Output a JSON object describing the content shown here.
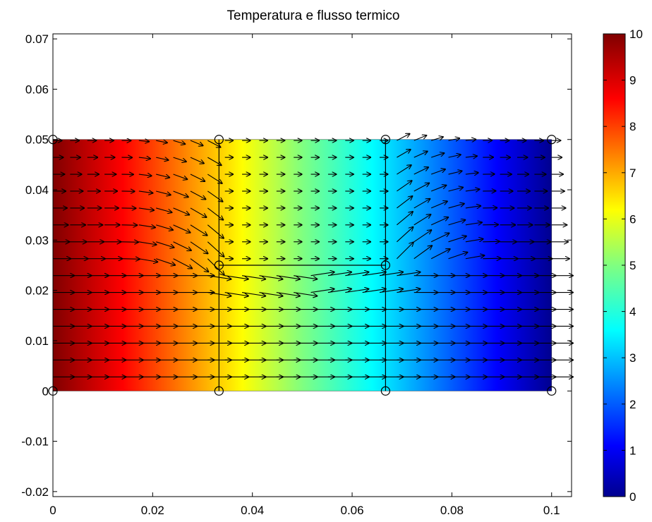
{
  "chart_data": {
    "type": "heatmap",
    "title": "Temperatura e flusso termico",
    "xlabel": "",
    "ylabel": "",
    "xlim": [
      0,
      0.104
    ],
    "ylim": [
      -0.021,
      0.071
    ],
    "x_ticks": [
      "0",
      "0.02",
      "0.04",
      "0.06",
      "0.08",
      "0.1"
    ],
    "x_tick_values": [
      0,
      0.02,
      0.04,
      0.06,
      0.08,
      0.1
    ],
    "y_ticks": [
      "-0.02",
      "-0.01",
      "0",
      "0.01",
      "0.02",
      "0.03",
      "0.04",
      "0.05",
      "0.06",
      "0.07"
    ],
    "y_tick_values": [
      -0.02,
      -0.01,
      0,
      0.01,
      0.02,
      0.03,
      0.04,
      0.05,
      0.06,
      0.07
    ],
    "domain": {
      "x": [
        0,
        0.1
      ],
      "y": [
        0,
        0.05
      ]
    },
    "temperature_left": 10,
    "temperature_right": 0,
    "mesh_nodes": [
      [
        0,
        0
      ],
      [
        0.0333,
        0
      ],
      [
        0.0667,
        0
      ],
      [
        0.1,
        0
      ],
      [
        0,
        0.05
      ],
      [
        0.0333,
        0.05
      ],
      [
        0.0667,
        0.05
      ],
      [
        0.1,
        0.05
      ],
      [
        0.0333,
        0.025
      ],
      [
        0.0667,
        0.025
      ]
    ],
    "mesh_lines": [
      [
        [
          0.0333,
          0
        ],
        [
          0.0333,
          0.05
        ]
      ],
      [
        [
          0.0667,
          0
        ],
        [
          0.0667,
          0.05
        ]
      ],
      [
        [
          0.0333,
          0.025
        ],
        [
          0.0667,
          0.025
        ]
      ]
    ],
    "colorbar": {
      "min": 0,
      "max": 10,
      "ticks": [
        "0",
        "1",
        "2",
        "3",
        "4",
        "5",
        "6",
        "7",
        "8",
        "9",
        "10"
      ],
      "colormap": "jet"
    },
    "quiver": {
      "nx": 30,
      "ny": 15,
      "direction": "left-to-right"
    },
    "grid": false
  }
}
